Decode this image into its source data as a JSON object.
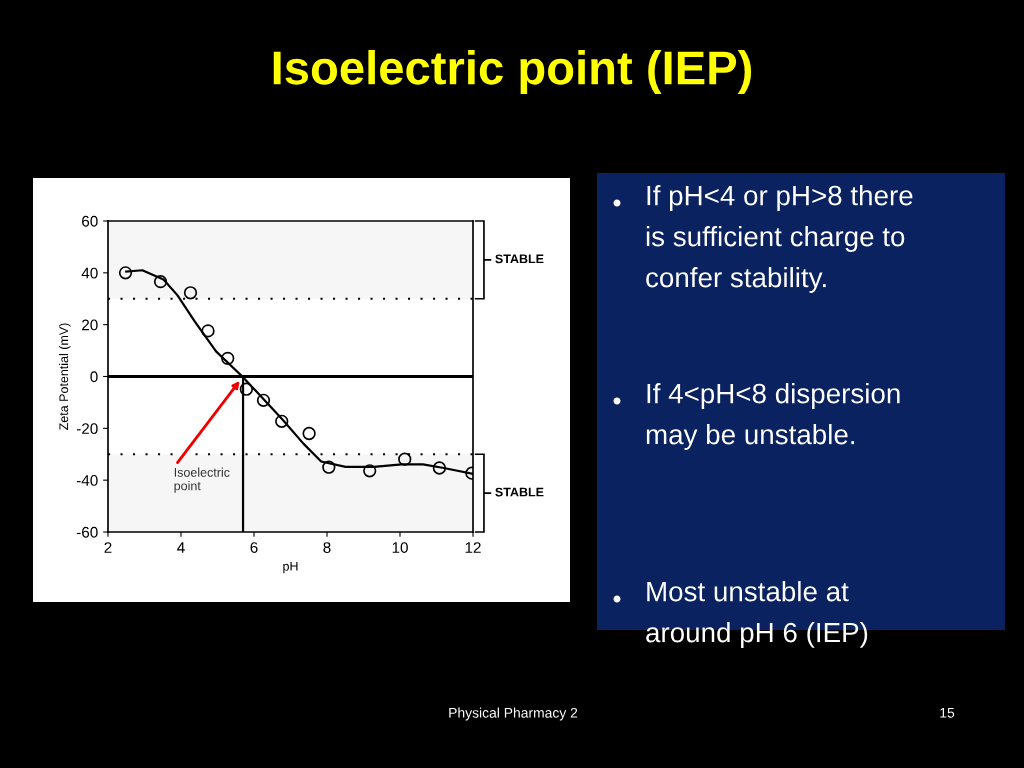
{
  "chart_data": {
    "type": "scatter",
    "title": "Isoelectric point (IEP)",
    "xlabel": "pH",
    "ylabel": "Zeta Potential (mV)",
    "xlim": [
      2,
      12
    ],
    "xticks": [
      2,
      4,
      6,
      8,
      10,
      12
    ],
    "ylim": [
      -60,
      60
    ],
    "yticks": [
      -60,
      -40,
      -20,
      0,
      20,
      40,
      60
    ],
    "grid": false,
    "marker": "circle",
    "series": [
      {
        "color": "#000000",
        "x": [
          2.48,
          3.44,
          4.26,
          4.74,
          5.28,
          5.79,
          6.26,
          6.76,
          7.51,
          8.05,
          9.17,
          10.13,
          11.08,
          11.97
        ],
        "values": [
          40,
          36.6,
          32.3,
          17.6,
          7,
          -4.9,
          -9.2,
          -17.3,
          -22,
          -35,
          -36.4,
          -31.9,
          -35.3,
          -37.3
        ]
      },
      {
        "type": "line",
        "color": "#000000",
        "marker": "none",
        "x": [
          2.5,
          2.94,
          3.52,
          3.9,
          4.38,
          4.96,
          5.68,
          6.2,
          6.78,
          7.36,
          7.84,
          8.51,
          9.28,
          10.05,
          10.63,
          11.2,
          12
        ],
        "values": [
          40.5,
          41,
          37.4,
          31.4,
          21.2,
          9.7,
          0,
          -7.8,
          -16.6,
          -26,
          -32.8,
          -34.9,
          -34.9,
          -33.9,
          -33.9,
          -35.3,
          -37.6
        ]
      },
      {
        "type": "line",
        "color": "#000000",
        "marker": "none",
        "x": [
          5.7,
          5.7
        ],
        "values": [
          -60,
          0
        ]
      }
    ],
    "ref_lines": [
      {
        "axis": "y",
        "value": 30,
        "line_style": "dotted",
        "color": "#000000"
      },
      {
        "axis": "y",
        "value": -30,
        "line_style": "dotted",
        "color": "#000000"
      },
      {
        "axis": "y",
        "value": 0,
        "line_style": "solid",
        "color": "#000000"
      }
    ],
    "bands": [
      {
        "axis": "y",
        "from": 30,
        "to": 60,
        "label": "STABLE"
      },
      {
        "axis": "y",
        "from": -60,
        "to": -30,
        "label": "STABLE"
      }
    ],
    "annotations": [
      {
        "text": "Isoelectric\npoint",
        "x": 5.7,
        "y": 0
      },
      "If pH<4 or pH>8 there\nis sufficient charge to\nconfer stability.",
      "If 4<pH<8 dispersion\nmay be unstable.",
      "Most unstable at\naround pH 6 (IEP)",
      "Physical Pharmacy 2",
      "15"
    ]
  }
}
